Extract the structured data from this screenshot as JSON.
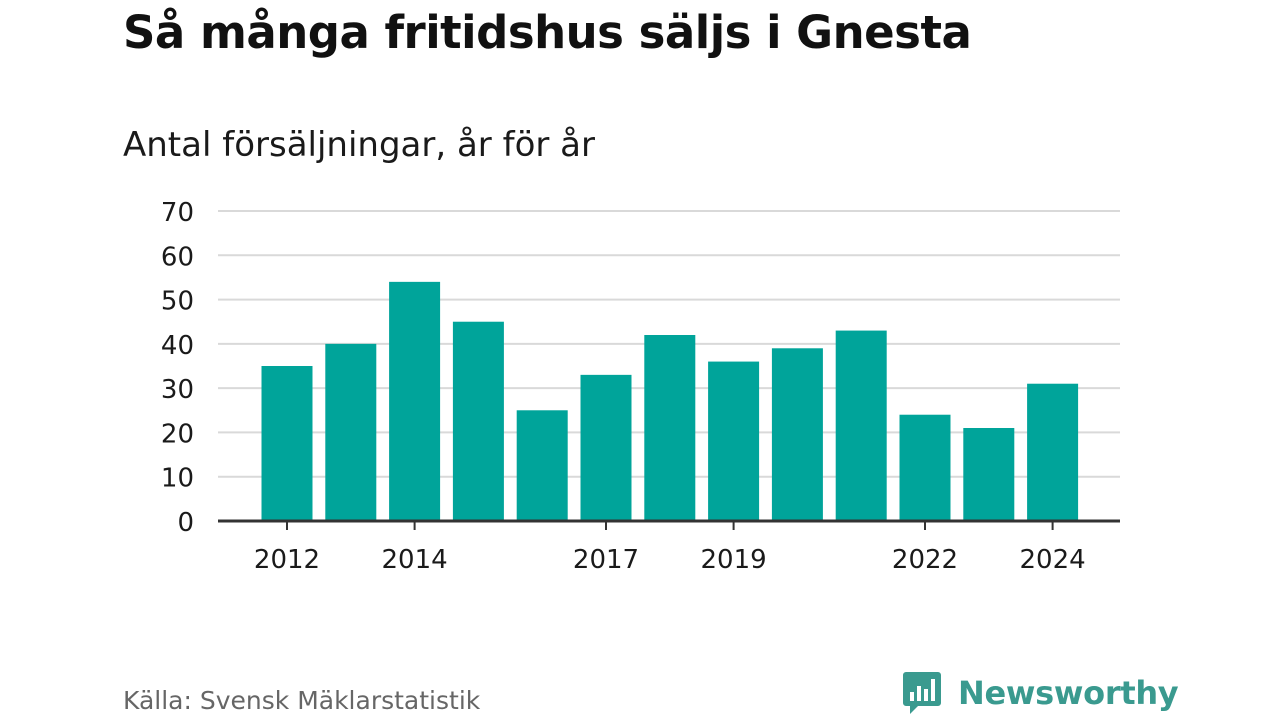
{
  "title": "Så många fritidshus säljs i Gnesta",
  "subtitle": "Antal försäljningar, år för år",
  "source": "Källa: Svensk Mäklarstatistik",
  "brand": {
    "name": "Newsworthy",
    "icon": "newsworthy-chart-bubble-icon",
    "color": "#3a9a8f"
  },
  "colors": {
    "bar": "#00a49a",
    "grid": "#d9d9d9",
    "axis": "#333333",
    "text": "#1a1a1a"
  },
  "chart_data": {
    "type": "bar",
    "categories": [
      "2012",
      "2013",
      "2014",
      "2015",
      "2016",
      "2017",
      "2018",
      "2019",
      "2020",
      "2021",
      "2022",
      "2023",
      "2024"
    ],
    "values": [
      35,
      40,
      54,
      45,
      25,
      33,
      42,
      36,
      39,
      43,
      24,
      21,
      31
    ],
    "x_tick_labels": [
      "2012",
      "2014",
      "2017",
      "2019",
      "2022",
      "2024"
    ],
    "y_ticks": [
      0,
      10,
      20,
      30,
      40,
      50,
      60,
      70
    ],
    "ylim": [
      0,
      70
    ],
    "xlabel": "",
    "ylabel": "",
    "grid": true,
    "legend": false
  }
}
